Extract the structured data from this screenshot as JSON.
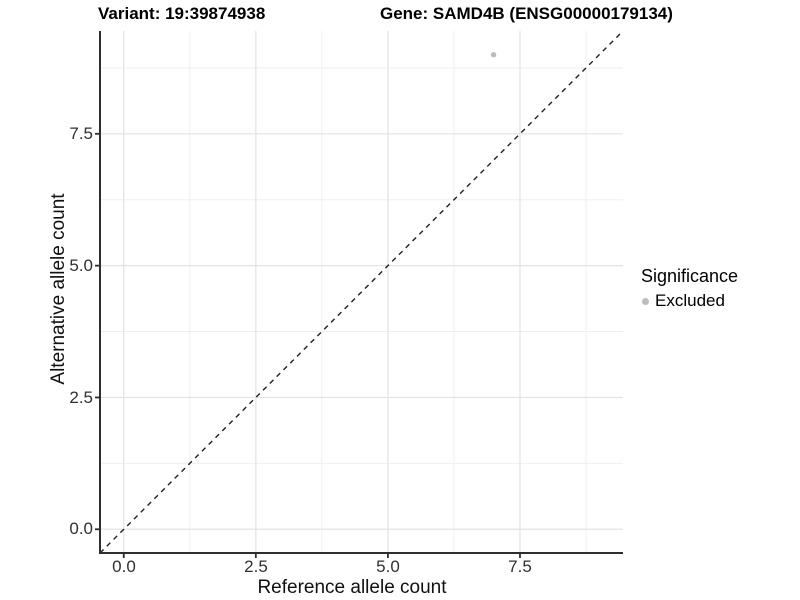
{
  "titles": {
    "variant": "Variant: 19:39874938",
    "gene": "Gene: SAMD4B (ENSG00000179134)"
  },
  "axes": {
    "x": {
      "label": "Reference allele count",
      "ticks": [
        "0.0",
        "2.5",
        "5.0",
        "7.5"
      ]
    },
    "y": {
      "label": "Alternative allele count",
      "ticks": [
        "7.5",
        "5.0",
        "2.5",
        "0.0"
      ]
    }
  },
  "legend": {
    "title": "Significance",
    "items": [
      {
        "label": "Excluded",
        "color": "#bcbcbc"
      }
    ]
  },
  "chart_data": {
    "type": "scatter",
    "title": "Variant: 19:39874938 | Gene: SAMD4B (ENSG00000179134)",
    "xlabel": "Reference allele count",
    "ylabel": "Alternative allele count",
    "xlim": [
      -0.45,
      9.45
    ],
    "ylim": [
      -0.45,
      9.45
    ],
    "x_major_ticks": [
      0,
      2.5,
      5,
      7.5
    ],
    "x_minor_ticks": [
      1.25,
      3.75,
      6.25,
      8.75
    ],
    "y_major_ticks": [
      0,
      2.5,
      5,
      7.5
    ],
    "y_minor_ticks": [
      1.25,
      3.75,
      6.25,
      8.75
    ],
    "series": [
      {
        "name": "Excluded",
        "color": "#bcbcbc",
        "points": [
          [
            7,
            9
          ]
        ]
      }
    ],
    "identity_line": {
      "slope": 1,
      "intercept": 0,
      "style": "dashed",
      "color": "#1f1f1f"
    },
    "grid": true,
    "legend_position": "right",
    "colors": {
      "grid_major": "#e2e2e2",
      "grid_minor": "#efefef",
      "axis": "#2e2e2e"
    }
  }
}
